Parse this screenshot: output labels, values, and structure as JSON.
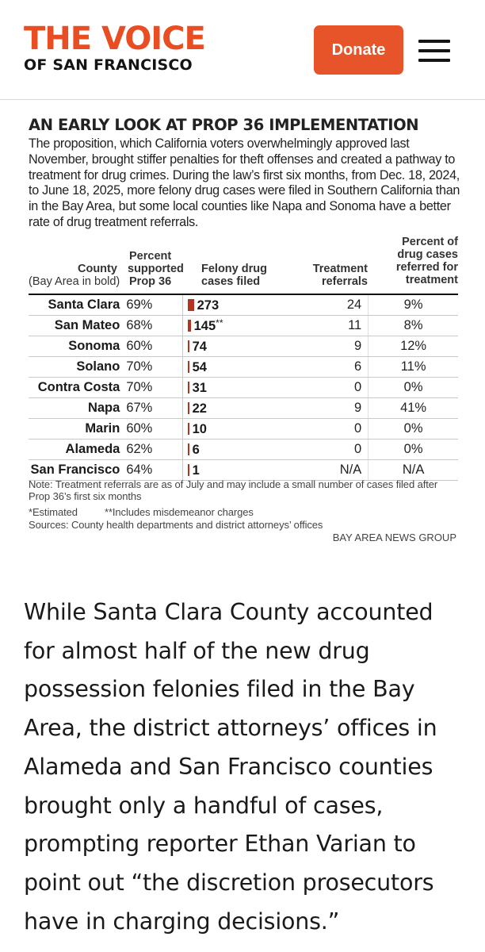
{
  "header": {
    "logo_line1": "THE VOICE",
    "logo_line2": "OF SAN FRANCISCO",
    "donate_label": "Donate",
    "accent_color": "#e84e22"
  },
  "graphic": {
    "title": "AN EARLY LOOK AT PROP 36 IMPLEMENTATION",
    "description": "The proposition, which California voters overwhelmingly approved last November, brought stiffer penalties for theft offenses and created a pathway to treatment for drug crimes. During the law’s first six months, from Dec. 18, 2024, to June 18, 2025, more felony drug cases were filed in Southern California than in the Bay Area, but some local counties like Napa and Sonoma have a better rate of drug treatment referrals.",
    "headers": {
      "county_1": "County",
      "county_2": "(Bay Area in bold)",
      "pct_1": "Percent",
      "pct_2": "supported",
      "pct_3": "Prop 36",
      "felony_1": "Felony drug",
      "felony_2": "cases filed",
      "treat_1": "Treatment",
      "treat_2": "referrals",
      "rate_1": "Percent of",
      "rate_2": "drug cases",
      "rate_3": "referred for",
      "rate_4": "treatment"
    },
    "rows": [
      {
        "county": "Santa Clara",
        "pct": "69%",
        "felony": "273",
        "felony_value": 273,
        "felony_mark": "",
        "treatment": "24",
        "rate": "9%"
      },
      {
        "county": "San Mateo",
        "pct": "68%",
        "felony": "145",
        "felony_value": 145,
        "felony_mark": "**",
        "treatment": "11",
        "rate": "8%"
      },
      {
        "county": "Sonoma",
        "pct": "60%",
        "felony": "74",
        "felony_value": 74,
        "felony_mark": "",
        "treatment": "9",
        "rate": "12%"
      },
      {
        "county": "Solano",
        "pct": "70%",
        "felony": "54",
        "felony_value": 54,
        "felony_mark": "",
        "treatment": "6",
        "rate": "11%"
      },
      {
        "county": "Contra Costa",
        "pct": "70%",
        "felony": "31",
        "felony_value": 31,
        "felony_mark": "",
        "treatment": "0",
        "rate": "0%"
      },
      {
        "county": "Napa",
        "pct": "67%",
        "felony": "22",
        "felony_value": 22,
        "felony_mark": "",
        "treatment": "9",
        "rate": "41%"
      },
      {
        "county": "Marin",
        "pct": "60%",
        "felony": "10",
        "felony_value": 10,
        "felony_mark": "",
        "treatment": "0",
        "rate": "0%"
      },
      {
        "county": "Alameda",
        "pct": "62%",
        "felony": "6",
        "felony_value": 6,
        "felony_mark": "",
        "treatment": "0",
        "rate": "0%"
      },
      {
        "county": "San Francisco",
        "pct": "64%",
        "felony": "1",
        "felony_value": 1,
        "felony_mark": "",
        "treatment": "N/A",
        "rate": "N/A"
      }
    ],
    "bar_color": "#b5321f",
    "note": "Note: Treatment referrals are as of July and may include a small number of cases filed after Prop 36’s first six months",
    "footnote_estimated": "*Estimated",
    "footnote_misdemeanor": "**Includes misdemeanor charges",
    "sources": "Sources: County health departments and district attorneys’ offices",
    "credit": "BAY AREA NEWS GROUP"
  },
  "article": {
    "paragraph": "While Santa Clara County accounted for almost half of the new drug possession felonies filed in the Bay Area, the district attorneys’ offices in Alameda and San Francisco counties brought only a handful of cases, prompting reporter Ethan Varian to point out “the discretion prosecutors have in charging decisions.”"
  }
}
